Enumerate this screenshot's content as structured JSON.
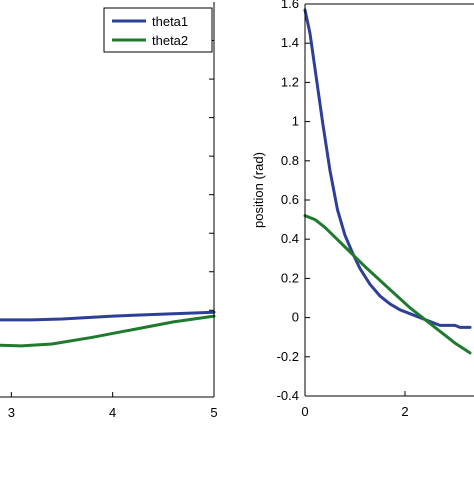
{
  "colors": {
    "theta1": "#2e3f9a",
    "theta2": "#1f7a2e",
    "axes": "#000000",
    "background": "#ffffff"
  },
  "chart_data": [
    {
      "type": "line",
      "title": "",
      "xlabel": "",
      "ylabel": "",
      "xlim": [
        2.0,
        5.0
      ],
      "ylim": [
        -0.45,
        1.6
      ],
      "xticks": [
        3,
        4,
        5
      ],
      "yticks": [],
      "grid": false,
      "legend": {
        "placement": "top-right",
        "entries": [
          "theta1",
          "theta2"
        ]
      },
      "series": [
        {
          "name": "theta1",
          "color": "#2e3f9a",
          "x": [
            2.0,
            2.5,
            3.0,
            3.2,
            3.5,
            4.0,
            4.5,
            5.0
          ],
          "y": [
            -0.05,
            -0.05,
            -0.05,
            -0.05,
            -0.045,
            -0.03,
            -0.02,
            -0.01
          ]
        },
        {
          "name": "theta2",
          "color": "#1f7a2e",
          "x": [
            2.0,
            2.5,
            2.8,
            3.1,
            3.4,
            3.8,
            4.2,
            4.6,
            5.0
          ],
          "y": [
            -0.15,
            -0.17,
            -0.18,
            -0.185,
            -0.175,
            -0.14,
            -0.1,
            -0.06,
            -0.03
          ]
        }
      ]
    },
    {
      "type": "line",
      "title": "",
      "xlabel": "",
      "ylabel": "position (rad)",
      "xlim": [
        0,
        3.3
      ],
      "ylim": [
        -0.4,
        1.6
      ],
      "xticks": [
        0,
        2
      ],
      "xtick_labels": [
        "0",
        "2"
      ],
      "yticks": [
        -0.4,
        -0.2,
        0,
        0.2,
        0.4,
        0.6,
        0.8,
        1.0,
        1.2,
        1.4,
        1.6
      ],
      "ytick_labels": [
        "-0.4",
        "-0.2",
        "0",
        "0.2",
        "0.4",
        "0.6",
        "0.8",
        "1",
        "1.2",
        "1.4",
        "1.6"
      ],
      "grid": false,
      "series": [
        {
          "name": "theta1",
          "color": "#2e3f9a",
          "x": [
            0,
            0.1,
            0.2,
            0.35,
            0.5,
            0.65,
            0.8,
            0.95,
            1.1,
            1.3,
            1.5,
            1.7,
            1.9,
            2.1,
            2.3,
            2.5,
            2.7,
            2.8,
            2.9,
            3.0,
            3.1,
            3.2,
            3.3
          ],
          "y": [
            1.57,
            1.45,
            1.27,
            1.0,
            0.75,
            0.55,
            0.42,
            0.33,
            0.25,
            0.17,
            0.11,
            0.07,
            0.04,
            0.02,
            0.0,
            -0.02,
            -0.04,
            -0.04,
            -0.04,
            -0.04,
            -0.05,
            -0.05,
            -0.05
          ]
        },
        {
          "name": "theta2",
          "color": "#1f7a2e",
          "x": [
            0,
            0.2,
            0.4,
            0.6,
            0.8,
            1.0,
            1.2,
            1.5,
            1.8,
            2.1,
            2.4,
            2.7,
            3.0,
            3.3
          ],
          "y": [
            0.52,
            0.5,
            0.46,
            0.41,
            0.36,
            0.31,
            0.26,
            0.19,
            0.12,
            0.05,
            -0.01,
            -0.07,
            -0.13,
            -0.18
          ]
        }
      ]
    }
  ]
}
